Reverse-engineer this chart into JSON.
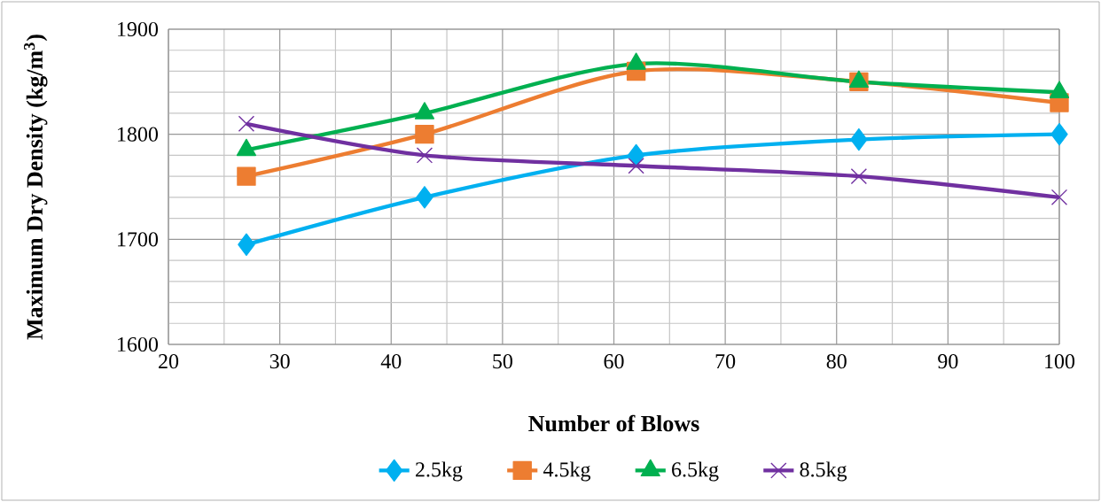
{
  "chart_data": {
    "type": "line",
    "xlabel": "Number of Blows",
    "ylabel": "Maximum Dry Density (kg/m$^{3}$)",
    "x": [
      27,
      43,
      62,
      82,
      100
    ],
    "series": [
      {
        "name": "2.5kg",
        "color": "#00b0f0",
        "marker": "diamond",
        "values": [
          1695,
          1740,
          1780,
          1795,
          1800
        ]
      },
      {
        "name": "4.5kg",
        "color": "#ed7d31",
        "marker": "square",
        "values": [
          1760,
          1800,
          1860,
          1850,
          1830
        ]
      },
      {
        "name": "6.5kg",
        "color": "#00b050",
        "marker": "triangle",
        "values": [
          1785,
          1820,
          1867,
          1850,
          1840
        ]
      },
      {
        "name": "8.5kg",
        "color": "#7030a0",
        "marker": "cross",
        "values": [
          1810,
          1780,
          1770,
          1760,
          1740
        ]
      }
    ],
    "xlim": [
      20,
      100
    ],
    "xticks": [
      20,
      30,
      40,
      50,
      60,
      70,
      80,
      90,
      100
    ],
    "ylim": [
      1600,
      1900
    ],
    "yticks": [
      1600,
      1700,
      1800,
      1900
    ],
    "grid": true,
    "legend": "bottom",
    "line_style": "solid"
  }
}
